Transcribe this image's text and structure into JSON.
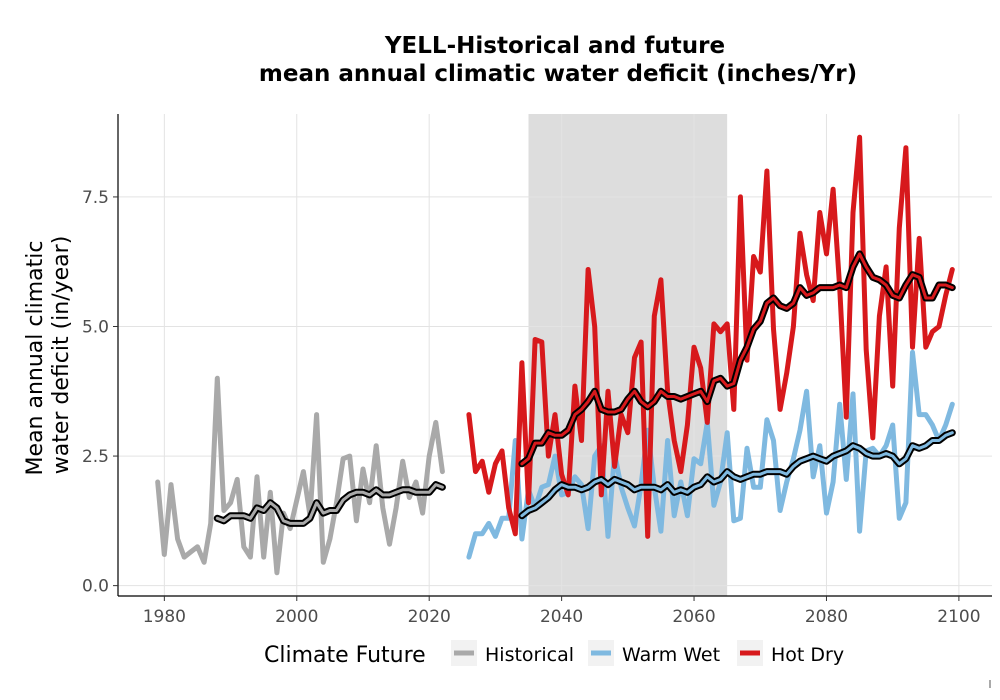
{
  "chart_data": {
    "type": "line",
    "title_line1": "YELL-Historical and future",
    "title_line2": "mean annual climatic water deficit (inches/Yr)",
    "xlabel": "",
    "ylabel_line1": "Mean annual climatic",
    "ylabel_line2": "water deficit (in/year)",
    "xlim": [
      1973,
      2105
    ],
    "ylim": [
      -0.2,
      9.1
    ],
    "x_ticks": [
      1980,
      2000,
      2020,
      2040,
      2060,
      2080,
      2100
    ],
    "y_ticks": [
      0,
      2.5,
      5,
      7.5
    ],
    "y_tick_labels": [
      "0.0",
      "2.5",
      "5.0",
      "7.5"
    ],
    "grid": true,
    "shaded_region": {
      "x_start": 2035,
      "x_end": 2065,
      "color": "#dddddd"
    },
    "legend": {
      "title": "Climate Future",
      "position": "bottom",
      "entries": [
        {
          "label": "Historical",
          "color": "#a9a9a9"
        },
        {
          "label": "Warm Wet",
          "color": "#7fb9e0"
        },
        {
          "label": "Hot Dry",
          "color": "#d7191c"
        }
      ]
    },
    "series": [
      {
        "name": "Historical",
        "color": "#a9a9a9",
        "x": [
          1979,
          1980,
          1981,
          1982,
          1983,
          1984,
          1985,
          1986,
          1987,
          1988,
          1989,
          1990,
          1991,
          1992,
          1993,
          1994,
          1995,
          1996,
          1997,
          1998,
          1999,
          2000,
          2001,
          2002,
          2003,
          2004,
          2005,
          2006,
          2007,
          2008,
          2009,
          2010,
          2011,
          2012,
          2013,
          2014,
          2015,
          2016,
          2017,
          2018,
          2019,
          2020,
          2021,
          2022
        ],
        "y": [
          2.0,
          0.6,
          1.95,
          0.9,
          0.55,
          0.65,
          0.75,
          0.45,
          1.2,
          4.0,
          1.45,
          1.6,
          2.05,
          0.75,
          0.55,
          2.1,
          0.55,
          1.8,
          0.25,
          1.4,
          1.1,
          1.65,
          2.2,
          1.35,
          3.3,
          0.45,
          0.9,
          1.6,
          2.45,
          2.5,
          1.25,
          2.25,
          1.6,
          2.7,
          1.5,
          0.8,
          1.5,
          2.4,
          1.7,
          2.0,
          1.4,
          2.5,
          3.15,
          2.2
        ]
      },
      {
        "name": "Historical-mean",
        "color": "#a9a9a9",
        "x": [
          1988,
          1989,
          1990,
          1991,
          1992,
          1993,
          1994,
          1995,
          1996,
          1997,
          1998,
          1999,
          2000,
          2001,
          2002,
          2003,
          2004,
          2005,
          2006,
          2007,
          2008,
          2009,
          2010,
          2011,
          2012,
          2013,
          2014,
          2015,
          2016,
          2017,
          2018,
          2019,
          2020,
          2021,
          2022
        ],
        "y": [
          1.3,
          1.25,
          1.35,
          1.35,
          1.35,
          1.3,
          1.5,
          1.45,
          1.6,
          1.5,
          1.25,
          1.2,
          1.2,
          1.2,
          1.3,
          1.6,
          1.4,
          1.45,
          1.45,
          1.65,
          1.75,
          1.8,
          1.8,
          1.75,
          1.85,
          1.75,
          1.75,
          1.8,
          1.85,
          1.85,
          1.8,
          1.8,
          1.8,
          1.95,
          1.9
        ]
      },
      {
        "name": "Warm Wet",
        "color": "#7fb9e0",
        "x": [
          2026,
          2027,
          2028,
          2029,
          2030,
          2031,
          2032,
          2033,
          2034,
          2035,
          2036,
          2037,
          2038,
          2039,
          2040,
          2041,
          2042,
          2043,
          2044,
          2045,
          2046,
          2047,
          2048,
          2049,
          2050,
          2051,
          2052,
          2053,
          2054,
          2055,
          2056,
          2057,
          2058,
          2059,
          2060,
          2061,
          2062,
          2063,
          2064,
          2065,
          2066,
          2067,
          2068,
          2069,
          2070,
          2071,
          2072,
          2073,
          2074,
          2075,
          2076,
          2077,
          2078,
          2079,
          2080,
          2081,
          2082,
          2083,
          2084,
          2085,
          2086,
          2087,
          2088,
          2089,
          2090,
          2091,
          2092,
          2093,
          2094,
          2095,
          2096,
          2097,
          2098,
          2099
        ],
        "y": [
          0.55,
          1.0,
          1.0,
          1.2,
          0.95,
          1.3,
          1.3,
          2.8,
          0.9,
          1.85,
          1.5,
          1.9,
          1.95,
          2.5,
          1.75,
          1.8,
          2.1,
          1.95,
          1.1,
          2.5,
          2.7,
          0.95,
          2.55,
          1.9,
          1.5,
          1.15,
          1.95,
          3.0,
          1.9,
          1.05,
          2.8,
          1.35,
          2.0,
          1.35,
          2.45,
          2.35,
          3.15,
          1.55,
          2.0,
          2.95,
          1.25,
          1.3,
          2.65,
          1.9,
          1.9,
          3.2,
          2.8,
          1.45,
          2.0,
          2.45,
          3.0,
          3.75,
          2.1,
          2.7,
          1.4,
          2.0,
          3.5,
          2.05,
          3.7,
          1.05,
          2.6,
          2.65,
          2.5,
          2.7,
          3.1,
          1.3,
          1.6,
          4.5,
          3.3,
          3.3,
          3.1,
          2.8,
          3.1,
          3.5
        ]
      },
      {
        "name": "Warm Wet-mean",
        "color": "#7fb9e0",
        "x": [
          2034,
          2035,
          2036,
          2037,
          2038,
          2039,
          2040,
          2041,
          2042,
          2043,
          2044,
          2045,
          2046,
          2047,
          2048,
          2049,
          2050,
          2051,
          2052,
          2053,
          2054,
          2055,
          2056,
          2057,
          2058,
          2059,
          2060,
          2061,
          2062,
          2063,
          2064,
          2065,
          2066,
          2067,
          2068,
          2069,
          2070,
          2071,
          2072,
          2073,
          2074,
          2075,
          2076,
          2077,
          2078,
          2079,
          2080,
          2081,
          2082,
          2083,
          2084,
          2085,
          2086,
          2087,
          2088,
          2089,
          2090,
          2091,
          2092,
          2093,
          2094,
          2095,
          2096,
          2097,
          2098,
          2099
        ],
        "y": [
          1.35,
          1.45,
          1.5,
          1.6,
          1.7,
          1.85,
          1.95,
          1.9,
          1.9,
          1.85,
          1.9,
          2.0,
          2.05,
          1.95,
          2.05,
          2.0,
          1.95,
          1.85,
          1.9,
          1.9,
          1.9,
          1.85,
          1.95,
          1.8,
          1.85,
          1.8,
          1.9,
          1.95,
          2.1,
          2.0,
          2.05,
          2.2,
          2.1,
          2.05,
          2.1,
          2.15,
          2.15,
          2.2,
          2.2,
          2.2,
          2.15,
          2.3,
          2.4,
          2.45,
          2.5,
          2.45,
          2.4,
          2.5,
          2.55,
          2.6,
          2.7,
          2.65,
          2.55,
          2.5,
          2.5,
          2.55,
          2.5,
          2.35,
          2.45,
          2.7,
          2.65,
          2.7,
          2.8,
          2.8,
          2.9,
          2.95
        ]
      },
      {
        "name": "Hot Dry",
        "color": "#d7191c",
        "x": [
          2026,
          2027,
          2028,
          2029,
          2030,
          2031,
          2032,
          2033,
          2034,
          2035,
          2036,
          2037,
          2038,
          2039,
          2040,
          2041,
          2042,
          2043,
          2044,
          2045,
          2046,
          2047,
          2048,
          2049,
          2050,
          2051,
          2052,
          2053,
          2054,
          2055,
          2056,
          2057,
          2058,
          2059,
          2060,
          2061,
          2062,
          2063,
          2064,
          2065,
          2066,
          2067,
          2068,
          2069,
          2070,
          2071,
          2072,
          2073,
          2074,
          2075,
          2076,
          2077,
          2078,
          2079,
          2080,
          2081,
          2082,
          2083,
          2084,
          2085,
          2086,
          2087,
          2088,
          2089,
          2090,
          2091,
          2092,
          2093,
          2094,
          2095,
          2096,
          2097,
          2098,
          2099
        ],
        "y": [
          3.3,
          2.2,
          2.4,
          1.8,
          2.35,
          2.6,
          1.5,
          1.0,
          4.3,
          1.6,
          4.75,
          4.7,
          2.5,
          3.3,
          2.15,
          1.75,
          3.85,
          2.8,
          6.1,
          5.0,
          1.75,
          3.75,
          2.3,
          3.3,
          2.95,
          4.4,
          4.7,
          0.95,
          5.2,
          5.9,
          3.75,
          2.8,
          2.2,
          3.1,
          4.6,
          4.2,
          3.15,
          5.05,
          4.9,
          5.05,
          3.4,
          7.5,
          4.35,
          6.35,
          6.05,
          8.0,
          4.95,
          3.4,
          4.1,
          5.0,
          6.8,
          6.0,
          5.5,
          7.2,
          6.4,
          7.65,
          5.75,
          3.25,
          7.2,
          8.65,
          4.55,
          2.85,
          5.2,
          6.15,
          3.85,
          6.9,
          8.45,
          4.6,
          6.7,
          4.6,
          4.9,
          5.0,
          5.6,
          6.1
        ]
      },
      {
        "name": "Hot Dry-mean",
        "color": "#d7191c",
        "x": [
          2034,
          2035,
          2036,
          2037,
          2038,
          2039,
          2040,
          2041,
          2042,
          2043,
          2044,
          2045,
          2046,
          2047,
          2048,
          2049,
          2050,
          2051,
          2052,
          2053,
          2054,
          2055,
          2056,
          2057,
          2058,
          2059,
          2060,
          2061,
          2062,
          2063,
          2064,
          2065,
          2066,
          2067,
          2068,
          2069,
          2070,
          2071,
          2072,
          2073,
          2074,
          2075,
          2076,
          2077,
          2078,
          2079,
          2080,
          2081,
          2082,
          2083,
          2084,
          2085,
          2086,
          2087,
          2088,
          2089,
          2090,
          2091,
          2092,
          2093,
          2094,
          2095,
          2096,
          2097,
          2098,
          2099
        ],
        "y": [
          2.35,
          2.45,
          2.75,
          2.75,
          2.95,
          2.9,
          2.9,
          3.0,
          3.3,
          3.4,
          3.55,
          3.75,
          3.4,
          3.35,
          3.35,
          3.4,
          3.6,
          3.75,
          3.55,
          3.45,
          3.55,
          3.75,
          3.65,
          3.65,
          3.6,
          3.65,
          3.7,
          3.75,
          3.55,
          3.95,
          4.0,
          3.85,
          3.9,
          4.35,
          4.6,
          4.95,
          5.1,
          5.45,
          5.55,
          5.4,
          5.35,
          5.45,
          5.75,
          5.6,
          5.65,
          5.75,
          5.75,
          5.75,
          5.8,
          5.75,
          6.15,
          6.4,
          6.15,
          5.95,
          5.9,
          5.8,
          5.6,
          5.55,
          5.8,
          6.0,
          5.95,
          5.55,
          5.55,
          5.8,
          5.8,
          5.75
        ]
      }
    ]
  }
}
